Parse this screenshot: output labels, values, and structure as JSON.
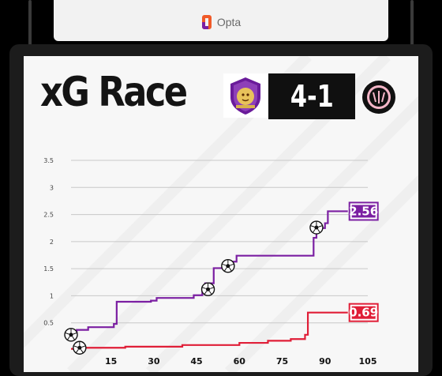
{
  "header": {
    "brand_label": "Opta",
    "brand_icon": "opta-logo-icon",
    "brand_color": "#f05a28"
  },
  "title": "xG Race",
  "score": "4-1",
  "teams": {
    "home": {
      "logo": "orlando-city-crest",
      "logo_text": "ORLANDO CITY",
      "color": "#7b1fa2"
    },
    "away": {
      "logo": "inter-miami-crest",
      "logo_text": "INTER MIAMI CF",
      "color": "#e01e37"
    }
  },
  "chart_data": {
    "type": "line",
    "step": true,
    "title": "xG Race",
    "xlabel": "",
    "ylabel": "",
    "xlim": [
      1,
      105
    ],
    "ylim": [
      0,
      3.5
    ],
    "y_ticks": [
      "0.5",
      "1",
      "1.5",
      "2",
      "2.5",
      "3",
      "3.5"
    ],
    "y_tick_values": [
      0.5,
      1,
      1.5,
      2,
      2.5,
      3,
      3.5
    ],
    "x_ticks": [
      "15",
      "30",
      "45",
      "60",
      "75",
      "90",
      "105"
    ],
    "x_tick_values": [
      15,
      30,
      45,
      60,
      75,
      90,
      105
    ],
    "grid": true,
    "series": [
      {
        "team": "home",
        "color": "#7b1fa2",
        "end_label": "2.56",
        "points": [
          [
            1,
            0.28
          ],
          [
            3,
            0.37
          ],
          [
            7,
            0.42
          ],
          [
            16,
            0.48
          ],
          [
            17,
            0.89
          ],
          [
            29,
            0.91
          ],
          [
            31,
            0.96
          ],
          [
            44,
            1.01
          ],
          [
            47,
            1.11
          ],
          [
            48,
            1.23
          ],
          [
            51,
            1.51
          ],
          [
            54,
            1.55
          ],
          [
            57,
            1.63
          ],
          [
            59,
            1.74
          ],
          [
            86,
            2.07
          ],
          [
            87,
            2.25
          ],
          [
            90,
            2.34
          ],
          [
            91,
            2.56
          ],
          [
            98,
            2.56
          ]
        ],
        "goals": [
          [
            1,
            0.28
          ],
          [
            49,
            1.12
          ],
          [
            56,
            1.55
          ],
          [
            87,
            2.26
          ]
        ]
      },
      {
        "team": "away",
        "color": "#e01e37",
        "end_label": "0.69",
        "points": [
          [
            1,
            0.02
          ],
          [
            4,
            0.04
          ],
          [
            20,
            0.06
          ],
          [
            40,
            0.09
          ],
          [
            60,
            0.13
          ],
          [
            70,
            0.17
          ],
          [
            78,
            0.2
          ],
          [
            83,
            0.28
          ],
          [
            84,
            0.69
          ],
          [
            98,
            0.69
          ]
        ],
        "goals": [
          [
            4,
            0.04
          ]
        ]
      }
    ]
  }
}
